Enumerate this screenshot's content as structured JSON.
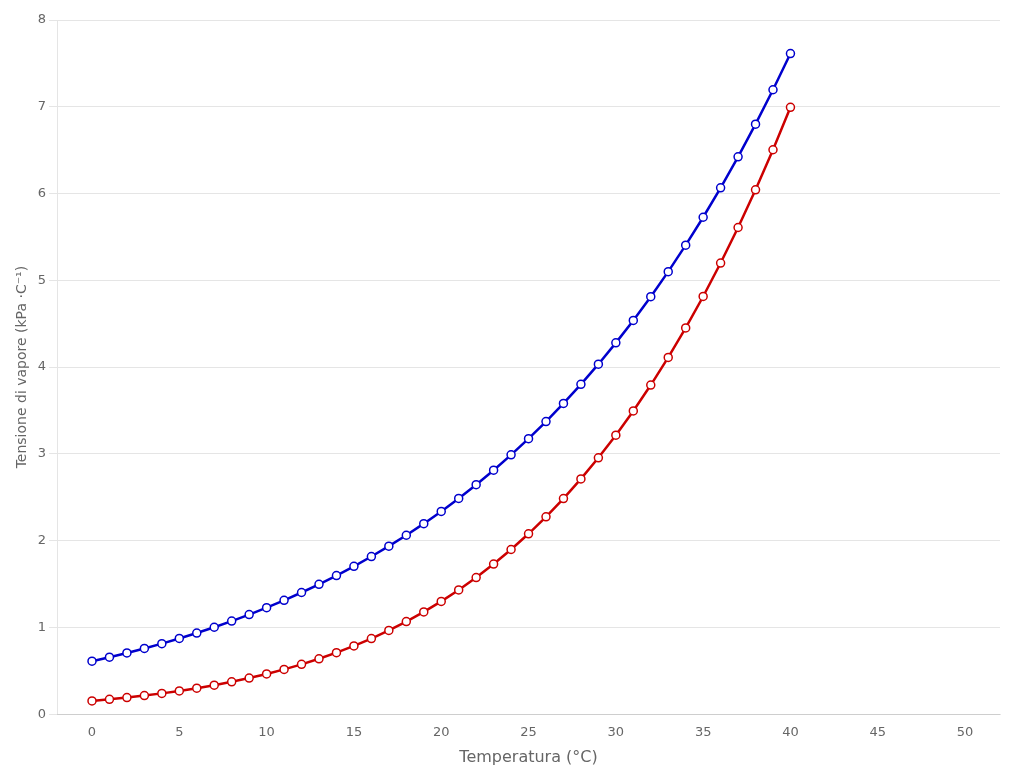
{
  "chart_data": {
    "type": "line",
    "x": [
      0,
      1,
      2,
      3,
      4,
      5,
      6,
      7,
      8,
      9,
      10,
      11,
      12,
      13,
      14,
      15,
      16,
      17,
      18,
      19,
      20,
      21,
      22,
      23,
      24,
      25,
      26,
      27,
      28,
      29,
      30,
      31,
      32,
      33,
      34,
      35,
      36,
      37,
      38,
      39,
      40
    ],
    "series": [
      {
        "color": "#0000CD",
        "marker": "o",
        "values": [
          0.6108,
          0.6571,
          0.7055,
          0.7575,
          0.8129,
          0.8726,
          0.9354,
          1.0021,
          1.073,
          1.1482,
          1.2279,
          1.3127,
          1.4024,
          1.4972,
          1.5977,
          1.7044,
          1.8171,
          1.9363,
          2.0624,
          2.1958,
          2.337,
          2.4865,
          2.6446,
          2.8117,
          2.9885,
          3.1753,
          3.3728,
          3.5813,
          3.8015,
          4.0337,
          4.2793,
          4.5381,
          4.8112,
          5.1001,
          5.4051,
          5.7268,
          6.0659,
          6.423,
          6.7997,
          7.1963,
          7.6134
        ]
      },
      {
        "color": "#CC0000",
        "marker": "o",
        "values": [
          0.1528,
          0.1713,
          0.1916,
          0.2144,
          0.2399,
          0.2682,
          0.2997,
          0.3347,
          0.3736,
          0.4165,
          0.464,
          0.5165,
          0.5744,
          0.6384,
          0.7089,
          0.7864,
          0.8716,
          0.9649,
          1.0671,
          1.1785,
          1.2999,
          1.4319,
          1.5751,
          1.7302,
          1.8979,
          2.0791,
          2.2746,
          2.4851,
          2.7116,
          2.9548,
          3.2153,
          3.4945,
          3.793,
          4.1117,
          4.4516,
          4.8138,
          5.1991,
          5.6087,
          6.0436,
          6.5048,
          6.9936
        ]
      }
    ],
    "xlabel": "Temperatura (°C)",
    "ylabel": "Tensione di vapore (kPa ·C⁻¹)",
    "xlim": [
      -2,
      52
    ],
    "ylim": [
      0,
      8
    ],
    "xticks": [
      0,
      5,
      10,
      15,
      20,
      25,
      30,
      35,
      40,
      45,
      50
    ],
    "yticks": [
      0,
      1,
      2,
      3,
      4,
      5,
      6,
      7,
      8
    ],
    "grid": "y"
  }
}
